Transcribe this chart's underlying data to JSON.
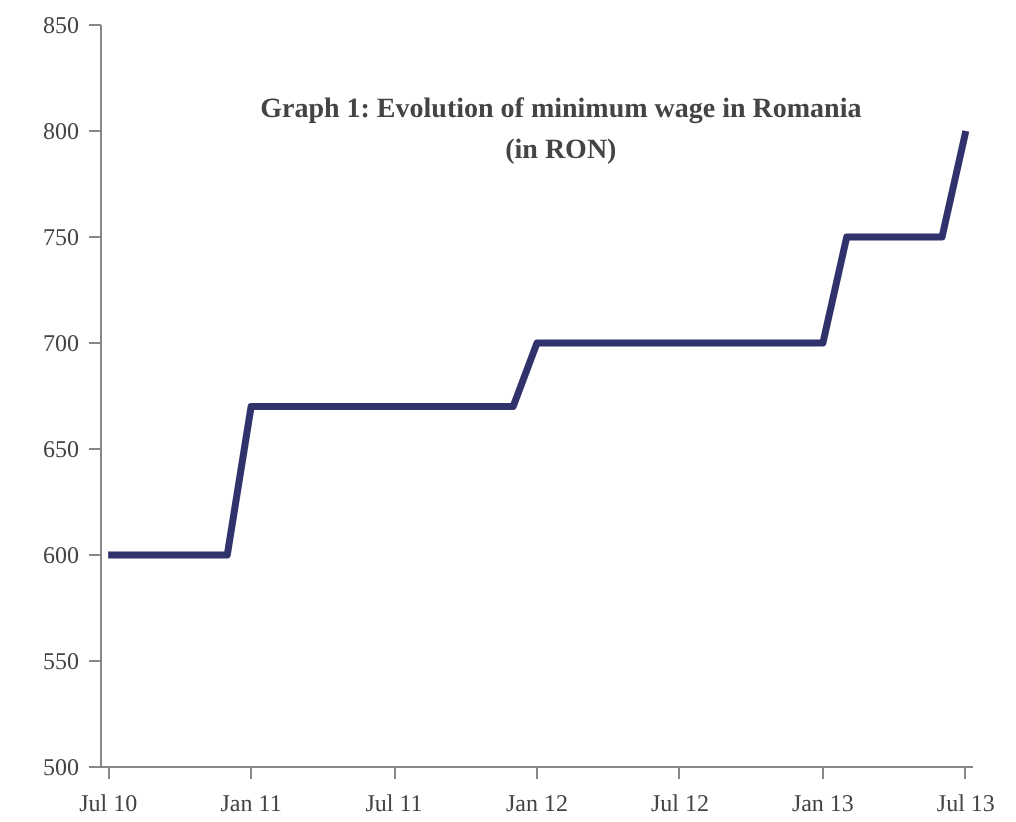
{
  "chart_data": {
    "type": "line",
    "title": "Graph 1: Evolution of minimum wage in Romania\n(in RON)",
    "categories": [
      "Jul 10",
      null,
      null,
      null,
      null,
      null,
      "Jan 11",
      null,
      null,
      null,
      null,
      null,
      "Jul 11",
      null,
      null,
      null,
      null,
      null,
      "Jan 12",
      null,
      null,
      null,
      null,
      null,
      "Jul 12",
      null,
      null,
      null,
      null,
      null,
      "Jan 13",
      null,
      null,
      null,
      null,
      null,
      "Jul 13"
    ],
    "series": [
      {
        "color": "#30336b",
        "values": [
          600,
          600,
          600,
          600,
          600,
          600,
          670,
          670,
          670,
          670,
          670,
          670,
          670,
          670,
          670,
          670,
          670,
          670,
          700,
          700,
          700,
          700,
          700,
          700,
          700,
          700,
          700,
          700,
          700,
          700,
          700,
          750,
          750,
          750,
          750,
          750,
          800
        ]
      }
    ],
    "ylim": [
      500,
      850
    ],
    "yticks": [
      500,
      550,
      600,
      650,
      700,
      750,
      800,
      850
    ],
    "grid": false,
    "marker": "none",
    "line_style": "solid"
  }
}
